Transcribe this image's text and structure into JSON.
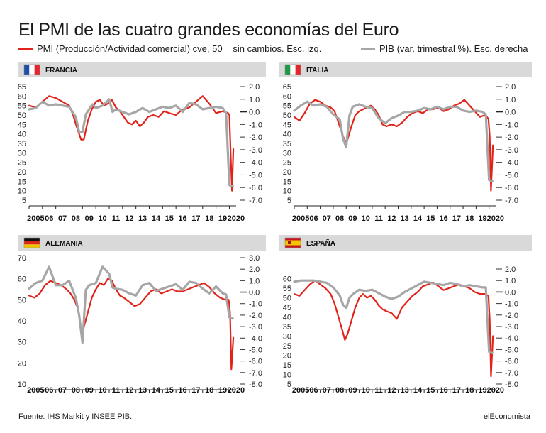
{
  "title": "El PMI de las cuatro grandes economías del Euro",
  "legend": {
    "pmi": "PMI (Producción/Actividad comercial) cve, 50 = sin cambios. Esc. izq.",
    "gdp": "PIB (var. trimestral %). Esc. derecha"
  },
  "colors": {
    "pmi": "#e2231a",
    "gdp": "#a6a6a6",
    "header": "#d9d9d9"
  },
  "source": "Fuente: IHS Markit y INSEE PIB.",
  "brand": "elEconomista",
  "x_tick_labels": [
    "2005",
    "06",
    "07",
    "08",
    "09",
    "10",
    "11",
    "12",
    "13",
    "14",
    "15",
    "16",
    "17",
    "18",
    "19",
    "2020"
  ],
  "chart_data": [
    {
      "type": "line",
      "title": "FRANCIA",
      "flag": "france",
      "ylim_left": [
        5,
        65
      ],
      "left_ticks": [
        "65",
        "60",
        "55",
        "50",
        "45",
        "40",
        "35",
        "30",
        "25",
        "20",
        "15",
        "10",
        "5"
      ],
      "ylim_right": [
        -7,
        2
      ],
      "right_ticks": [
        "2.0",
        "1.0",
        "0.0",
        "-1.0",
        "-2.0",
        "-3.0",
        "-4.0",
        "-5.0",
        "-6.0",
        "-7.0"
      ],
      "series": [
        {
          "name": "PMI",
          "axis": "left",
          "x": [
            2005.0,
            2005.5,
            2006.0,
            2006.5,
            2007.0,
            2007.5,
            2008.0,
            2008.3,
            2008.6,
            2008.9,
            2009.1,
            2009.4,
            2009.7,
            2010.0,
            2010.3,
            2010.6,
            2010.9,
            2011.2,
            2011.5,
            2011.8,
            2012.1,
            2012.4,
            2012.7,
            2013.0,
            2013.3,
            2013.6,
            2013.9,
            2014.3,
            2014.7,
            2015.1,
            2015.5,
            2016.0,
            2016.5,
            2017.0,
            2017.5,
            2018.0,
            2018.5,
            2019.0,
            2019.5,
            2019.9,
            2020.0,
            2020.1,
            2020.2,
            2020.3
          ],
          "values": [
            55,
            54,
            57,
            60,
            59,
            57,
            55,
            50,
            43,
            37,
            37,
            47,
            53,
            57,
            58,
            55,
            56,
            58,
            54,
            52,
            49,
            46,
            45,
            47,
            44,
            46,
            49,
            50,
            49,
            52,
            51,
            50,
            53,
            54,
            57,
            60,
            56,
            51,
            52,
            51,
            50,
            28,
            10,
            32
          ]
        },
        {
          "name": "PIB",
          "axis": "right",
          "x": [
            2005.0,
            2005.5,
            2006.0,
            2006.5,
            2007.0,
            2007.5,
            2008.0,
            2008.5,
            2008.75,
            2009.0,
            2009.25,
            2009.5,
            2009.75,
            2010.0,
            2010.5,
            2011.0,
            2011.25,
            2011.5,
            2012.0,
            2012.5,
            2013.0,
            2013.5,
            2014.0,
            2014.5,
            2015.0,
            2015.5,
            2016.0,
            2016.5,
            2017.0,
            2017.5,
            2018.0,
            2018.5,
            2019.0,
            2019.5,
            2019.75,
            2020.0,
            2020.25
          ],
          "values": [
            0.2,
            0.3,
            0.8,
            0.5,
            0.6,
            0.5,
            0.4,
            -0.4,
            -1.6,
            -1.6,
            -0.2,
            0.2,
            0.6,
            0.3,
            0.5,
            1.0,
            0.0,
            0.2,
            0.0,
            -0.2,
            0.0,
            0.3,
            0.0,
            0.2,
            0.4,
            0.3,
            0.5,
            0.0,
            0.7,
            0.6,
            0.2,
            0.3,
            0.4,
            0.3,
            -0.1,
            -5.8,
            -5.9
          ]
        }
      ]
    },
    {
      "type": "line",
      "title": "ITALIA",
      "flag": "italy",
      "ylim_left": [
        5,
        65
      ],
      "left_ticks": [
        "65",
        "60",
        "55",
        "50",
        "45",
        "40",
        "35",
        "30",
        "25",
        "20",
        "15",
        "10",
        "5"
      ],
      "ylim_right": [
        -7,
        2
      ],
      "right_ticks": [
        "2.0",
        "1.0",
        "0.0",
        "-1.0",
        "-2.0",
        "-3.0",
        "-4.0",
        "-5.0",
        "-6.0",
        "-7.0"
      ],
      "series": [
        {
          "name": "PMI",
          "axis": "left",
          "x": [
            2005.0,
            2005.4,
            2005.8,
            2006.2,
            2006.6,
            2007.0,
            2007.4,
            2007.8,
            2008.1,
            2008.4,
            2008.7,
            2008.9,
            2009.1,
            2009.4,
            2009.7,
            2010.0,
            2010.3,
            2010.6,
            2010.9,
            2011.2,
            2011.5,
            2011.8,
            2012.1,
            2012.5,
            2012.9,
            2013.3,
            2013.7,
            2014.1,
            2014.5,
            2014.9,
            2015.3,
            2015.7,
            2016.1,
            2016.5,
            2016.9,
            2017.3,
            2017.7,
            2018.1,
            2018.5,
            2018.9,
            2019.3,
            2019.7,
            2019.95,
            2020.05,
            2020.15,
            2020.3
          ],
          "values": [
            49,
            47,
            51,
            56,
            58,
            57,
            55,
            54,
            52,
            46,
            40,
            36,
            37,
            44,
            50,
            52,
            53,
            54,
            55,
            53,
            50,
            45,
            44,
            45,
            44,
            46,
            49,
            51,
            52,
            51,
            53,
            53,
            54,
            52,
            53,
            55,
            56,
            58,
            55,
            52,
            49,
            50,
            48,
            39,
            10,
            34
          ]
        },
        {
          "name": "PIB",
          "axis": "right",
          "x": [
            2005.0,
            2005.5,
            2006.0,
            2006.5,
            2007.0,
            2007.5,
            2008.0,
            2008.5,
            2008.75,
            2009.0,
            2009.25,
            2009.5,
            2010.0,
            2010.5,
            2011.0,
            2011.5,
            2012.0,
            2012.5,
            2013.0,
            2013.5,
            2014.0,
            2014.5,
            2015.0,
            2015.5,
            2016.0,
            2016.5,
            2017.0,
            2017.5,
            2018.0,
            2018.5,
            2019.0,
            2019.5,
            2019.75,
            2020.0,
            2020.25
          ],
          "values": [
            0.1,
            0.5,
            0.8,
            0.5,
            0.6,
            0.4,
            -0.2,
            -0.6,
            -2.1,
            -2.8,
            -0.3,
            0.4,
            0.6,
            0.4,
            0.3,
            -0.5,
            -0.9,
            -0.5,
            -0.3,
            0.0,
            0.0,
            0.1,
            0.3,
            0.2,
            0.4,
            0.2,
            0.4,
            0.4,
            0.1,
            0.0,
            0.1,
            0.0,
            -0.2,
            -5.4,
            -5.5
          ]
        }
      ]
    },
    {
      "type": "line",
      "title": "ALEMANIA",
      "flag": "germany",
      "ylim_left": [
        10,
        70
      ],
      "left_ticks": [
        "70",
        "60",
        "50",
        "40",
        "30",
        "20",
        "10"
      ],
      "ylim_right": [
        -8,
        3
      ],
      "right_ticks": [
        "3.0",
        "2.0",
        "1.0",
        "0.0",
        "-1.0",
        "-2.0",
        "-3.0",
        "-4.0",
        "-5.0",
        "-6.0",
        "-7.0",
        "-8.0"
      ],
      "series": [
        {
          "name": "PMI",
          "axis": "left",
          "x": [
            2005.0,
            2005.4,
            2005.8,
            2006.2,
            2006.6,
            2007.0,
            2007.4,
            2007.8,
            2008.1,
            2008.4,
            2008.7,
            2008.9,
            2009.1,
            2009.4,
            2009.7,
            2010.0,
            2010.3,
            2010.6,
            2010.9,
            2011.2,
            2011.5,
            2011.8,
            2012.1,
            2012.5,
            2012.9,
            2013.3,
            2013.7,
            2014.1,
            2014.5,
            2014.9,
            2015.3,
            2015.7,
            2016.1,
            2016.5,
            2016.9,
            2017.3,
            2017.7,
            2018.1,
            2018.5,
            2018.9,
            2019.3,
            2019.7,
            2019.95,
            2020.05,
            2020.15,
            2020.3
          ],
          "values": [
            52,
            51,
            53,
            57,
            59,
            58,
            57,
            55,
            53,
            50,
            45,
            36,
            37,
            44,
            51,
            55,
            58,
            57,
            60,
            59,
            55,
            52,
            51,
            49,
            47,
            48,
            51,
            54,
            55,
            53,
            54,
            55,
            54,
            54,
            55,
            56,
            57,
            58,
            56,
            53,
            51,
            50,
            50,
            44,
            17,
            32
          ]
        },
        {
          "name": "PIB",
          "axis": "right",
          "x": [
            2005.0,
            2005.5,
            2006.0,
            2006.5,
            2007.0,
            2007.5,
            2008.0,
            2008.5,
            2008.75,
            2009.0,
            2009.25,
            2009.5,
            2010.0,
            2010.5,
            2011.0,
            2011.25,
            2011.5,
            2012.0,
            2012.5,
            2013.0,
            2013.5,
            2014.0,
            2014.5,
            2015.0,
            2015.5,
            2016.0,
            2016.5,
            2017.0,
            2017.5,
            2018.0,
            2018.5,
            2019.0,
            2019.5,
            2019.75,
            2020.0,
            2020.25
          ],
          "values": [
            0.3,
            0.8,
            1.0,
            2.2,
            0.6,
            0.6,
            1.0,
            -0.5,
            -2.0,
            -4.4,
            0.2,
            0.6,
            0.8,
            2.2,
            1.6,
            0.4,
            0.3,
            0.2,
            -0.1,
            -0.3,
            0.6,
            0.8,
            0.1,
            0.3,
            0.5,
            0.7,
            0.2,
            0.9,
            0.8,
            0.3,
            -0.1,
            0.5,
            -0.1,
            -0.2,
            -2.2,
            -2.3
          ]
        }
      ]
    },
    {
      "type": "line",
      "title": "ESPAÑA",
      "flag": "spain",
      "ylim_left": [
        5,
        65
      ],
      "left_ticks": [
        "60",
        "55",
        "50",
        "45",
        "40",
        "35",
        "30",
        "25",
        "20",
        "15",
        "10",
        "5"
      ],
      "ylim_right": [
        -8,
        2
      ],
      "right_ticks": [
        "2.0",
        "1.0",
        "0.0",
        "-1.0",
        "-2.0",
        "-3.0",
        "-4.0",
        "-5.0",
        "-6.0",
        "-7.0",
        "-8.0"
      ],
      "series": [
        {
          "name": "PMI",
          "axis": "left",
          "x": [
            2005.0,
            2005.4,
            2005.8,
            2006.2,
            2006.6,
            2007.0,
            2007.4,
            2007.8,
            2008.1,
            2008.4,
            2008.7,
            2008.9,
            2009.1,
            2009.4,
            2009.7,
            2010.0,
            2010.3,
            2010.6,
            2010.9,
            2011.2,
            2011.5,
            2011.8,
            2012.1,
            2012.5,
            2012.9,
            2013.3,
            2013.7,
            2014.1,
            2014.5,
            2014.9,
            2015.3,
            2015.7,
            2016.1,
            2016.5,
            2016.9,
            2017.3,
            2017.7,
            2018.1,
            2018.5,
            2018.9,
            2019.3,
            2019.7,
            2019.95,
            2020.05,
            2020.15,
            2020.3
          ],
          "values": [
            52,
            51,
            54,
            57,
            59,
            57,
            55,
            52,
            47,
            40,
            33,
            28,
            31,
            38,
            45,
            50,
            52,
            50,
            51,
            49,
            46,
            44,
            43,
            42,
            39,
            45,
            48,
            51,
            53,
            56,
            57,
            58,
            56,
            54,
            55,
            56,
            57,
            56,
            55,
            53,
            52,
            52,
            51,
            39,
            9,
            30
          ]
        },
        {
          "name": "PIB",
          "axis": "right",
          "x": [
            2005.0,
            2005.5,
            2006.0,
            2006.5,
            2007.0,
            2007.5,
            2008.0,
            2008.5,
            2008.75,
            2009.0,
            2009.25,
            2009.5,
            2010.0,
            2010.5,
            2011.0,
            2011.5,
            2012.0,
            2012.5,
            2013.0,
            2013.5,
            2014.0,
            2014.5,
            2015.0,
            2015.5,
            2016.0,
            2016.5,
            2017.0,
            2017.5,
            2018.0,
            2018.5,
            2019.0,
            2019.5,
            2019.75,
            2020.0,
            2020.25
          ],
          "values": [
            0.9,
            1.0,
            1.0,
            1.0,
            0.9,
            0.8,
            0.4,
            -0.3,
            -1.1,
            -1.4,
            -0.5,
            -0.2,
            0.2,
            0.1,
            0.2,
            -0.1,
            -0.4,
            -0.6,
            -0.4,
            0.0,
            0.3,
            0.6,
            0.9,
            0.8,
            0.7,
            0.6,
            0.8,
            0.7,
            0.5,
            0.6,
            0.5,
            0.4,
            0.4,
            -5.2,
            -5.3
          ]
        }
      ]
    }
  ]
}
